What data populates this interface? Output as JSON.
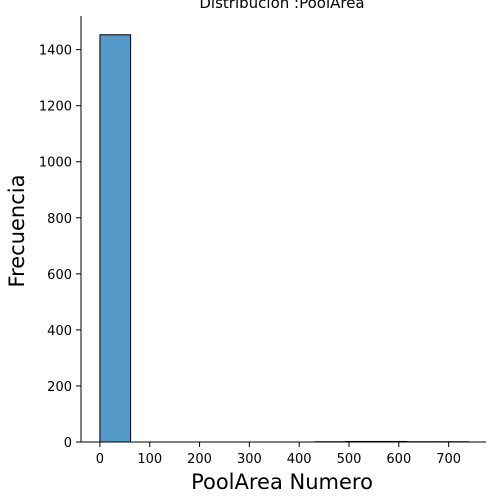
{
  "chart_data": {
    "type": "bar",
    "title": "Distribución :PoolArea",
    "xlabel": "PoolArea Numero",
    "ylabel": "Frecuencia",
    "xlim": [
      -38,
      775
    ],
    "ylim": [
      0,
      1520
    ],
    "xticks": [
      0,
      100,
      200,
      300,
      400,
      500,
      600,
      700
    ],
    "yticks": [
      0,
      200,
      400,
      600,
      800,
      1000,
      1200,
      1400
    ],
    "grid": false,
    "bins": [
      {
        "x0": 0,
        "x1": 61.6,
        "value": 1453
      },
      {
        "x0": 61.6,
        "x1": 123.2,
        "value": 0
      },
      {
        "x0": 123.2,
        "x1": 184.8,
        "value": 0
      },
      {
        "x0": 184.8,
        "x1": 246.4,
        "value": 0
      },
      {
        "x0": 246.4,
        "x1": 308.0,
        "value": 0
      },
      {
        "x0": 308.0,
        "x1": 369.6,
        "value": 0
      },
      {
        "x0": 369.6,
        "x1": 431.2,
        "value": 0
      },
      {
        "x0": 431.2,
        "x1": 492.8,
        "value": 1
      },
      {
        "x0": 492.8,
        "x1": 554.4,
        "value": 2
      },
      {
        "x0": 554.4,
        "x1": 616.0,
        "value": 2
      },
      {
        "x0": 616.0,
        "x1": 677.6,
        "value": 1
      },
      {
        "x0": 677.6,
        "x1": 739.2,
        "value": 1
      }
    ],
    "bar_color": "#5499c7",
    "edge_color": "#000000"
  }
}
